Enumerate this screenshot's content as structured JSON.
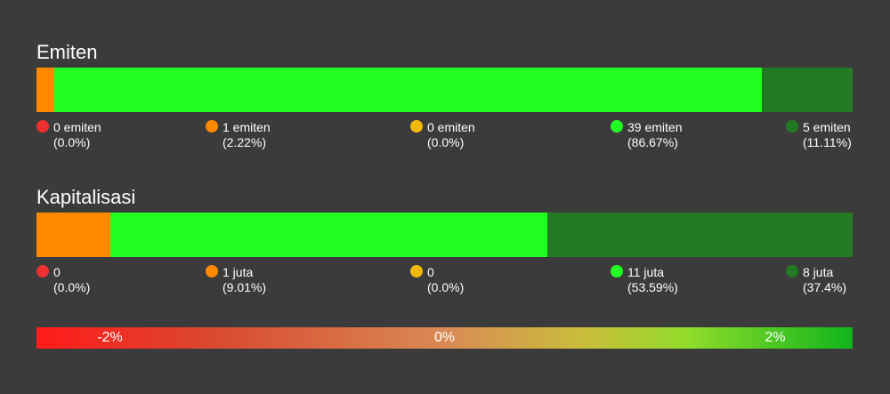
{
  "chart_data": [
    {
      "type": "bar",
      "title": "Emiten",
      "stacked": true,
      "orientation": "horizontal",
      "categories": [
        "0 emiten",
        "1 emiten",
        "0 emiten",
        "39 emiten",
        "5 emiten"
      ],
      "values": [
        0,
        1,
        0,
        39,
        5
      ],
      "percent_labels": [
        "(0.0%)",
        "(2.22%)",
        "(0.0%)",
        "(86.67%)",
        "(11.11%)"
      ],
      "colors": [
        "#ee3030",
        "#ff8a00",
        "#f2b90c",
        "#22ff22",
        "#237a23"
      ]
    },
    {
      "type": "bar",
      "title": "Kapitalisasi",
      "stacked": true,
      "orientation": "horizontal",
      "categories": [
        "0",
        "1 juta",
        "0",
        "11 juta",
        "8 juta"
      ],
      "values": [
        0,
        9.01,
        0,
        53.59,
        37.4
      ],
      "percent_labels": [
        "(0.0%)",
        "(9.01%)",
        "(0.0%)",
        "(53.59%)",
        "(37.4%)"
      ],
      "colors": [
        "#ee3030",
        "#ff8a00",
        "#f2b90c",
        "#22ff22",
        "#237a23"
      ]
    }
  ],
  "scale": {
    "labels": [
      "-2%",
      "0%",
      "2%"
    ],
    "colors": [
      "#ff1a1a",
      "#d98a55",
      "#10b51c"
    ]
  }
}
